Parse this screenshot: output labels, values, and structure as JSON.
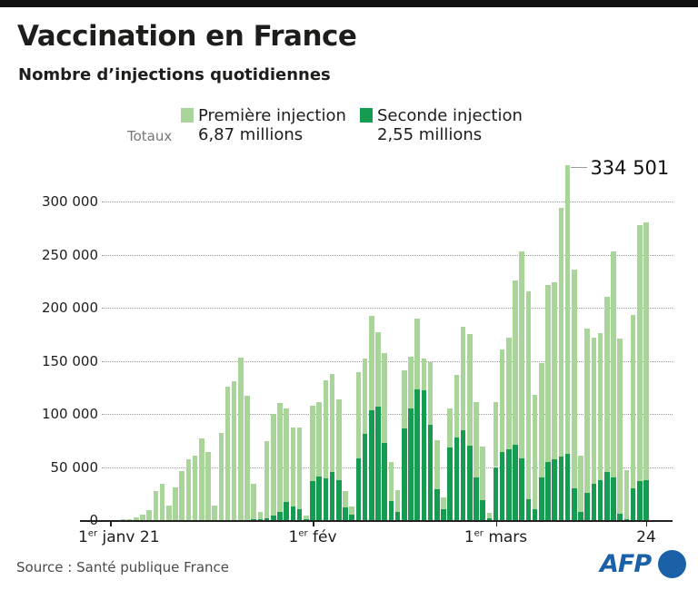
{
  "header": {
    "title": "Vaccination en France",
    "subtitle": "Nombre d’injections quotidiennes"
  },
  "legend": {
    "totals_label": "Totaux",
    "series": [
      {
        "label": "Première injection",
        "total": "6,87 millions",
        "color": "#a9d59b"
      },
      {
        "label": "Seconde injection",
        "total": "2,55 millions",
        "color": "#169c51"
      }
    ]
  },
  "footer": {
    "source": "Source : Santé publique France",
    "logo": "AFP"
  },
  "chart_data": {
    "type": "bar",
    "stacked": true,
    "title": "Nombre d’injections quotidiennes",
    "x_range": "1er janvier 2021 - 24 mars 2021",
    "days": 83,
    "ylim": [
      0,
      350000
    ],
    "yticks": [
      0,
      50000,
      100000,
      150000,
      200000,
      250000,
      300000
    ],
    "ytick_labels": [
      "0",
      "50 000",
      "100 000",
      "150 000",
      "200 000",
      "250 000",
      "300 000"
    ],
    "grid": "dotted-horizontal",
    "legend_position": "top",
    "xticks": [
      {
        "base": "1",
        "sup": "er",
        "rest": " janv 21",
        "day": 0,
        "align": "left",
        "x": 86
      },
      {
        "base": "1",
        "sup": "er",
        "rest": " fév",
        "day": 31,
        "align": "center"
      },
      {
        "base": "1",
        "sup": "er",
        "rest": " mars",
        "day": 59,
        "align": "center"
      },
      {
        "base": "24",
        "sup": "",
        "rest": "",
        "day": 82,
        "align": "center"
      }
    ],
    "annotation": {
      "label": "334 501",
      "day": 70,
      "total_value": 334501
    },
    "series": [
      {
        "name": "Première injection",
        "color": "#a9d59b",
        "values": [
          400,
          400,
          500,
          1000,
          2500,
          5000,
          9000,
          27000,
          34000,
          14000,
          31000,
          46000,
          57000,
          61000,
          77000,
          64000,
          14000,
          82000,
          126000,
          131000,
          153000,
          117000,
          33000,
          7500,
          72000,
          96000,
          102000,
          88000,
          74000,
          77000,
          3000,
          71000,
          70000,
          93000,
          93000,
          76000,
          15000,
          8000,
          81000,
          71000,
          89000,
          70000,
          84000,
          37000,
          20000,
          55000,
          49000,
          67000,
          30000,
          59000,
          46000,
          11000,
          37000,
          59000,
          97000,
          105000,
          71000,
          50000,
          5000,
          61000,
          97000,
          105000,
          155000,
          195000,
          195000,
          108000,
          108000,
          166000,
          167000,
          234000,
          272501,
          206000,
          53000,
          154000,
          138000,
          138000,
          165000,
          213000,
          165000,
          46000,
          163000,
          241000,
          242000
        ]
      },
      {
        "name": "Seconde injection",
        "color": "#169c51",
        "values": [
          0,
          0,
          0,
          0,
          0,
          0,
          0,
          0,
          0,
          0,
          0,
          0,
          0,
          0,
          0,
          0,
          0,
          0,
          0,
          0,
          0,
          0,
          1000,
          500,
          2000,
          4000,
          8000,
          17000,
          13000,
          10000,
          1000,
          37000,
          41000,
          39000,
          45000,
          38000,
          12000,
          5000,
          58000,
          81000,
          103000,
          107000,
          73000,
          18000,
          8000,
          86000,
          105000,
          123000,
          122000,
          90000,
          29000,
          10000,
          68000,
          78000,
          85000,
          70000,
          40000,
          19000,
          2000,
          50000,
          64000,
          67000,
          71000,
          58000,
          20000,
          10000,
          40000,
          55000,
          57000,
          60000,
          62000,
          30000,
          8000,
          26000,
          34000,
          38000,
          45000,
          40000,
          6000,
          1000,
          30000,
          37000,
          38000
        ]
      }
    ]
  }
}
